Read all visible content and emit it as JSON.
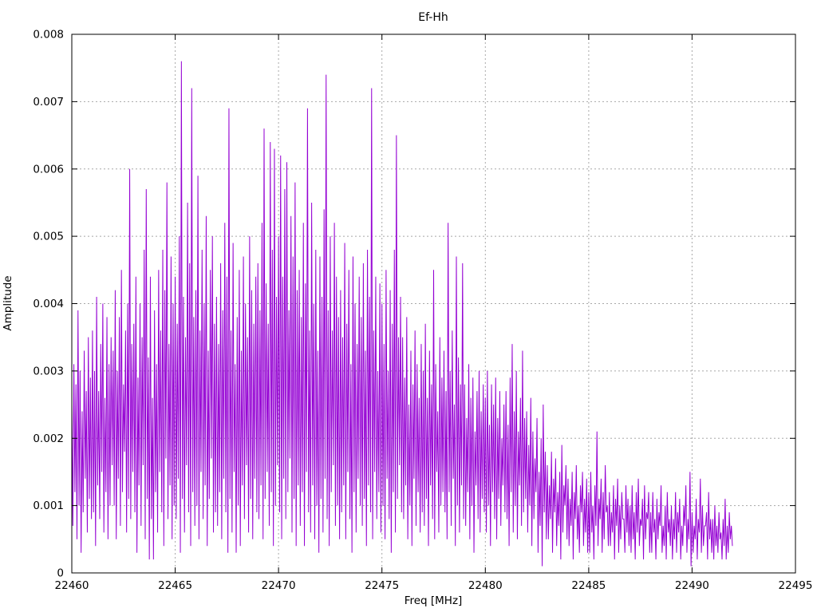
{
  "chart": {
    "title": "Ef-Hh",
    "xlabel": "Freq [MHz]",
    "ylabel": "Amplitude"
  },
  "colors": {
    "line": "#9400d3",
    "grid": "#a8a8a8",
    "axis": "#000000",
    "background": "#ffffff"
  },
  "chart_data": {
    "type": "line",
    "title": "Ef-Hh",
    "xlabel": "Freq [MHz]",
    "ylabel": "Amplitude",
    "xlim": [
      22460,
      22495
    ],
    "ylim": [
      0,
      0.008
    ],
    "x_tick_values": [
      22460,
      22465,
      22470,
      22475,
      22480,
      22485,
      22490,
      22495
    ],
    "x_tick_labels": [
      "22460",
      "22465",
      "22470",
      "22475",
      "22480",
      "22485",
      "22490",
      "22495"
    ],
    "y_tick_values": [
      0,
      0.001,
      0.002,
      0.003,
      0.004,
      0.005,
      0.006,
      0.007,
      0.008
    ],
    "y_tick_labels": [
      "0",
      "0.001",
      "0.002",
      "0.003",
      "0.004",
      "0.005",
      "0.006",
      "0.007",
      "0.008"
    ],
    "grid": true,
    "legend": "none",
    "line_color": "#9400d3",
    "series": {
      "name": "Ef-Hh",
      "description": "Noisy amplitude spectrum; columns give upper/lower swing of the trace every 0.1 MHz, amplitudes in units of 0.0001",
      "x_start": 22460.0,
      "x_end": 22492.0,
      "x_step_mhz": 0.1,
      "amplitude_unit": 0.0001,
      "upper": [
        25,
        31,
        28,
        39,
        30,
        24,
        33,
        27,
        35,
        29,
        36,
        30,
        41,
        27,
        34,
        40,
        26,
        38,
        31,
        35,
        33,
        42,
        30,
        38,
        45,
        28,
        36,
        40,
        60,
        34,
        37,
        44,
        29,
        40,
        35,
        48,
        57,
        32,
        44,
        26,
        39,
        31,
        45,
        36,
        48,
        42,
        58,
        34,
        47,
        40,
        44,
        37,
        50,
        76,
        41,
        35,
        55,
        46,
        72,
        38,
        42,
        59,
        36,
        48,
        40,
        53,
        33,
        45,
        50,
        37,
        41,
        34,
        46,
        39,
        52,
        44,
        69,
        36,
        49,
        31,
        38,
        45,
        33,
        47,
        40,
        35,
        50,
        42,
        37,
        44,
        46,
        39,
        52,
        66,
        43,
        37,
        64,
        48,
        63,
        41,
        50,
        62,
        44,
        57,
        61,
        39,
        53,
        47,
        58,
        42,
        45,
        38,
        52,
        43,
        69,
        36,
        55,
        40,
        48,
        33,
        47,
        41,
        54,
        74,
        39,
        50,
        36,
        52,
        44,
        38,
        42,
        35,
        49,
        37,
        45,
        31,
        47,
        40,
        34,
        44,
        38,
        46,
        33,
        48,
        41,
        72,
        36,
        44,
        30,
        43,
        40,
        34,
        45,
        30,
        42,
        37,
        48,
        65,
        35,
        41,
        35,
        29,
        38,
        25,
        33,
        28,
        36,
        31,
        26,
        34,
        30,
        37,
        26,
        33,
        28,
        45,
        31,
        24,
        35,
        29,
        33,
        27,
        52,
        30,
        36,
        25,
        47,
        32,
        28,
        46,
        28,
        23,
        31,
        26,
        29,
        21,
        27,
        30,
        24,
        28,
        26,
        30,
        22,
        28,
        25,
        29,
        23,
        27,
        20,
        25,
        27,
        22,
        29,
        34,
        24,
        30,
        21,
        26,
        33,
        23,
        24,
        19,
        26,
        21,
        17,
        23,
        15,
        20,
        25,
        18,
        16,
        13,
        18,
        14,
        17,
        12,
        15,
        19,
        13,
        16,
        14,
        11,
        15,
        12,
        16,
        10,
        13,
        15,
        11,
        14,
        12,
        15,
        10,
        13,
        21,
        11,
        14,
        12,
        16,
        10,
        12,
        9,
        13,
        11,
        14,
        10,
        12,
        8,
        13,
        11,
        10,
        13,
        9,
        12,
        14,
        8,
        11,
        13,
        9,
        12,
        9,
        12,
        8,
        11,
        9,
        13,
        7,
        10,
        12,
        8,
        10,
        8,
        12,
        9,
        11,
        7,
        10,
        13,
        8,
        15,
        9,
        7,
        11,
        8,
        14,
        10,
        7,
        9,
        12,
        8,
        8,
        10,
        7,
        9,
        6,
        8,
        11,
        7,
        9,
        7
      ],
      "lower": [
        7,
        12,
        5,
        10,
        3,
        9,
        14,
        6,
        11,
        8,
        9,
        4,
        13,
        8,
        15,
        6,
        12,
        5,
        10,
        16,
        10,
        5,
        14,
        7,
        12,
        18,
        6,
        11,
        8,
        15,
        9,
        3,
        13,
        7,
        16,
        5,
        11,
        2,
        8,
        2,
        12,
        6,
        15,
        9,
        4,
        17,
        8,
        13,
        5,
        10,
        8,
        14,
        3,
        11,
        6,
        16,
        9,
        4,
        12,
        7,
        10,
        5,
        15,
        8,
        13,
        4,
        11,
        17,
        6,
        9,
        7,
        12,
        5,
        14,
        9,
        3,
        11,
        6,
        15,
        3,
        10,
        4,
        13,
        8,
        16,
        6,
        11,
        5,
        14,
        9,
        8,
        13,
        5,
        11,
        15,
        7,
        12,
        4,
        10,
        16,
        9,
        5,
        14,
        8,
        12,
        17,
        6,
        11,
        4,
        13,
        7,
        12,
        4,
        15,
        9,
        6,
        13,
        5,
        10,
        3,
        11,
        6,
        14,
        8,
        4,
        12,
        16,
        7,
        10,
        5,
        9,
        13,
        5,
        15,
        8,
        3,
        12,
        6,
        14,
        10,
        7,
        11,
        4,
        13,
        9,
        5,
        15,
        8,
        12,
        6,
        10,
        5,
        14,
        8,
        3,
        12,
        6,
        11,
        16,
        9,
        8,
        13,
        5,
        10,
        4,
        14,
        7,
        12,
        6,
        9,
        7,
        11,
        4,
        13,
        8,
        5,
        15,
        6,
        10,
        12,
        9,
        5,
        12,
        7,
        14,
        4,
        10,
        6,
        13,
        8,
        7,
        12,
        5,
        10,
        3,
        13,
        8,
        6,
        11,
        9,
        6,
        10,
        4,
        12,
        8,
        5,
        11,
        7,
        13,
        9,
        8,
        4,
        12,
        6,
        10,
        5,
        13,
        7,
        9,
        11,
        6,
        10,
        4,
        8,
        12,
        3,
        7,
        1,
        9,
        5,
        5,
        8,
        3,
        9,
        4,
        7,
        2,
        6,
        10,
        5,
        4,
        7,
        2,
        8,
        5,
        3,
        9,
        4,
        6,
        3,
        3,
        6,
        2,
        7,
        4,
        8,
        3,
        5,
        9,
        4,
        4,
        6,
        2,
        7,
        3,
        5,
        8,
        3,
        6,
        4,
        3,
        5,
        2,
        6,
        4,
        7,
        2,
        5,
        8,
        3,
        3,
        6,
        2,
        5,
        7,
        3,
        4,
        2,
        6,
        4,
        2,
        5,
        3,
        6,
        2,
        4,
        7,
        3,
        5,
        1,
        3,
        5,
        2,
        6,
        3,
        4,
        7,
        2,
        5,
        3,
        2,
        4,
        3,
        5,
        2,
        4,
        2,
        3,
        5,
        4
      ]
    }
  }
}
